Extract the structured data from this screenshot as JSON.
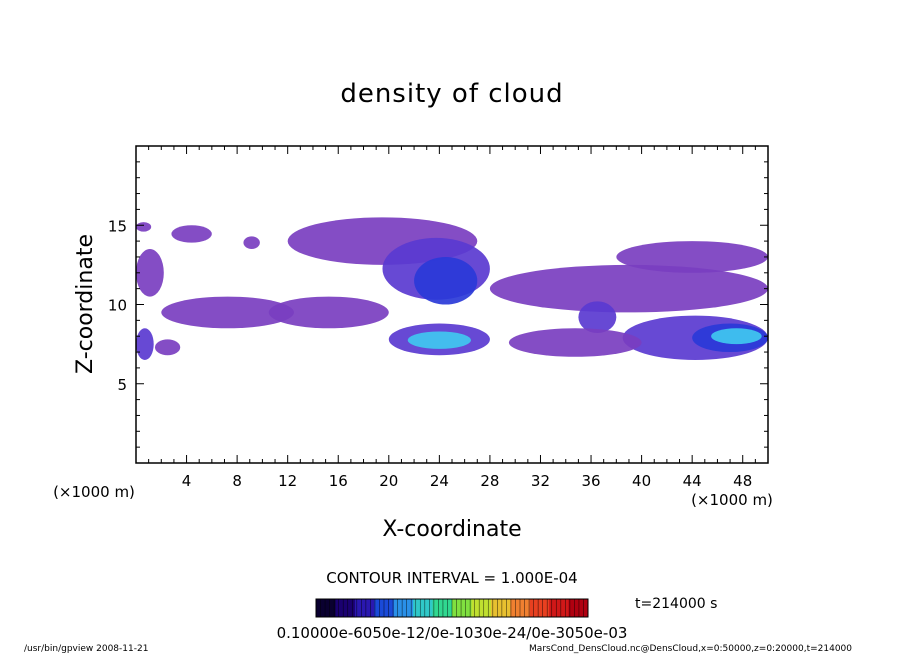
{
  "chart_data": {
    "type": "heatmap",
    "title": "density of cloud",
    "xlabel": "X-coordinate",
    "ylabel": "Z-coordinate",
    "x_unit": "(×1000 m)",
    "y_unit": "(×1000 m)",
    "xlim": [
      0,
      50
    ],
    "ylim": [
      0,
      20
    ],
    "x_ticks": [
      "4",
      "8",
      "12",
      "16",
      "20",
      "24",
      "28",
      "32",
      "36",
      "40",
      "44",
      "48"
    ],
    "y_ticks": [
      "5",
      "10",
      "15"
    ],
    "contour_interval": "CONTOUR INTERVAL = 1.000E-04",
    "time_label": "t=214000 s",
    "colorbar_labels": "0.10000e-6050e-12/0e-1030e-24/0e-3050e-03",
    "colorbar_colors": [
      "#0a0030",
      "#1a0070",
      "#2a18b0",
      "#1a4ad8",
      "#2a90e8",
      "#30c8c8",
      "#30d890",
      "#80e040",
      "#c0e030",
      "#e8c030",
      "#f08030",
      "#e84020",
      "#d01818",
      "#b00010"
    ],
    "cloud_colors": {
      "background_purple": "#7a3ec0",
      "dense_blue": "#2a3ad8",
      "core_cyan": "#40c8f0"
    },
    "cloud_regions": [
      {
        "x": [
          0.0,
          1.2
        ],
        "z": [
          14.6,
          15.2
        ],
        "level": 1
      },
      {
        "x": [
          2.8,
          6.0
        ],
        "z": [
          13.9,
          15.0
        ],
        "level": 1
      },
      {
        "x": [
          8.5,
          9.8
        ],
        "z": [
          13.5,
          14.3
        ],
        "level": 1
      },
      {
        "x": [
          12.0,
          27.0
        ],
        "z": [
          12.5,
          15.5
        ],
        "level": 1
      },
      {
        "x": [
          19.5,
          28.0
        ],
        "z": [
          10.3,
          14.2
        ],
        "level": 2
      },
      {
        "x": [
          22.0,
          27.0
        ],
        "z": [
          10.0,
          13.0
        ],
        "level": 3
      },
      {
        "x": [
          0.0,
          2.2
        ],
        "z": [
          10.5,
          13.5
        ],
        "level": 1
      },
      {
        "x": [
          2.0,
          12.5
        ],
        "z": [
          8.5,
          10.5
        ],
        "level": 1
      },
      {
        "x": [
          10.5,
          20.0
        ],
        "z": [
          8.5,
          10.5
        ],
        "level": 1
      },
      {
        "x": [
          28.0,
          50.0
        ],
        "z": [
          9.5,
          12.5
        ],
        "level": 1
      },
      {
        "x": [
          38.0,
          50.0
        ],
        "z": [
          12.0,
          14.0
        ],
        "level": 1
      },
      {
        "x": [
          35.0,
          38.0
        ],
        "z": [
          8.2,
          10.2
        ],
        "level": 2
      },
      {
        "x": [
          20.0,
          28.0
        ],
        "z": [
          6.8,
          8.8
        ],
        "level": 2
      },
      {
        "x": [
          21.5,
          26.5
        ],
        "z": [
          7.2,
          8.3
        ],
        "level": 4
      },
      {
        "x": [
          38.5,
          50.0
        ],
        "z": [
          6.5,
          9.3
        ],
        "level": 2
      },
      {
        "x": [
          44.0,
          50.0
        ],
        "z": [
          7.0,
          8.8
        ],
        "level": 3
      },
      {
        "x": [
          45.5,
          49.5
        ],
        "z": [
          7.5,
          8.5
        ],
        "level": 4
      },
      {
        "x": [
          0.0,
          1.4
        ],
        "z": [
          6.5,
          8.5
        ],
        "level": 2
      },
      {
        "x": [
          1.5,
          3.5
        ],
        "z": [
          6.8,
          7.8
        ],
        "level": 1
      },
      {
        "x": [
          29.5,
          40.0
        ],
        "z": [
          6.7,
          8.5
        ],
        "level": 1
      }
    ]
  },
  "footer": {
    "left": "/usr/bin/gpview  2008-11-21",
    "right": "MarsCond_DensCloud.nc@DensCloud,x=0:50000,z=0:20000,t=214000"
  }
}
